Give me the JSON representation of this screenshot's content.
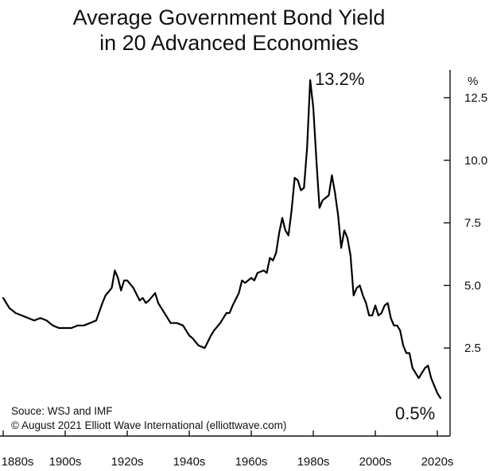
{
  "chart_data": {
    "type": "line",
    "title_lines": [
      "Average Government Bond Yield",
      "in 20 Advanced Economies"
    ],
    "ylabel": "%",
    "ylim": [
      0,
      14.5
    ],
    "yticks": [
      2.5,
      5.0,
      7.5,
      10.0,
      12.5
    ],
    "ytick_labels": [
      "2.5",
      "5.0",
      "7.5",
      "10.0",
      "12.5"
    ],
    "xlim": [
      1880,
      2020
    ],
    "xticks": [
      1880,
      1900,
      1920,
      1940,
      1960,
      1980,
      2000,
      2020
    ],
    "xtick_labels": [
      "1880s",
      "1900s",
      "1920s",
      "1940s",
      "1960s",
      "1980s",
      "2000s",
      "2020s"
    ],
    "grid": false,
    "annotations": [
      {
        "text": "13.2%",
        "x": 1981,
        "y": 13.1
      },
      {
        "text": "0.5%",
        "x": 2012,
        "y": -0.1
      }
    ],
    "source_lines": [
      "Souce: WSJ and IMF",
      "© August 2021 Elliott Wave International (elliottwave.com)"
    ],
    "series": [
      {
        "x": [
          1880,
          1882,
          1884,
          1886,
          1888,
          1890,
          1892,
          1894,
          1896,
          1898,
          1900,
          1902,
          1904,
          1906,
          1908,
          1910,
          1912,
          1913,
          1915,
          1916,
          1917,
          1918,
          1919,
          1920,
          1922,
          1924,
          1925,
          1926,
          1927,
          1929,
          1930,
          1932,
          1934,
          1936,
          1938,
          1940,
          1941,
          1943,
          1945,
          1947,
          1948,
          1950,
          1952,
          1953,
          1954,
          1956,
          1957,
          1958,
          1960,
          1961,
          1962,
          1964,
          1965,
          1966,
          1967,
          1968,
          1969,
          1970,
          1971,
          1972,
          1973,
          1974,
          1975,
          1976,
          1977,
          1978,
          1979,
          1980,
          1981,
          1982,
          1983,
          1984,
          1985,
          1986,
          1987,
          1988,
          1989,
          1990,
          1991,
          1992,
          1993,
          1994,
          1995,
          1996,
          1997,
          1998,
          1999,
          2000,
          2001,
          2002,
          2003,
          2004,
          2005,
          2006,
          2007,
          2008,
          2009,
          2010,
          2011,
          2012,
          2013,
          2014,
          2015,
          2016,
          2017,
          2018,
          2019,
          2020,
          2021
        ],
        "y": [
          4.5,
          4.1,
          3.9,
          3.8,
          3.7,
          3.6,
          3.7,
          3.6,
          3.4,
          3.3,
          3.3,
          3.3,
          3.4,
          3.4,
          3.5,
          3.6,
          4.3,
          4.6,
          4.9,
          5.6,
          5.3,
          4.8,
          5.2,
          5.2,
          4.9,
          4.4,
          4.5,
          4.3,
          4.4,
          4.7,
          4.3,
          3.9,
          3.5,
          3.5,
          3.4,
          3.0,
          2.9,
          2.6,
          2.5,
          3.0,
          3.2,
          3.5,
          3.9,
          3.9,
          4.2,
          4.7,
          5.2,
          5.1,
          5.3,
          5.2,
          5.5,
          5.6,
          5.5,
          6.1,
          6.0,
          6.3,
          7.1,
          7.7,
          7.2,
          7.0,
          8.0,
          9.3,
          9.2,
          8.8,
          8.9,
          10.5,
          13.2,
          12.1,
          10.0,
          8.1,
          8.4,
          8.5,
          8.6,
          9.4,
          8.7,
          7.8,
          6.5,
          7.2,
          6.9,
          6.2,
          4.6,
          4.9,
          5.0,
          4.6,
          4.3,
          3.8,
          3.8,
          4.2,
          3.8,
          3.9,
          4.2,
          4.3,
          3.7,
          3.4,
          3.4,
          3.2,
          2.6,
          2.3,
          2.3,
          1.7,
          1.5,
          1.3,
          1.5,
          1.7,
          1.8,
          1.3,
          1.0,
          0.7,
          0.5
        ]
      }
    ]
  }
}
